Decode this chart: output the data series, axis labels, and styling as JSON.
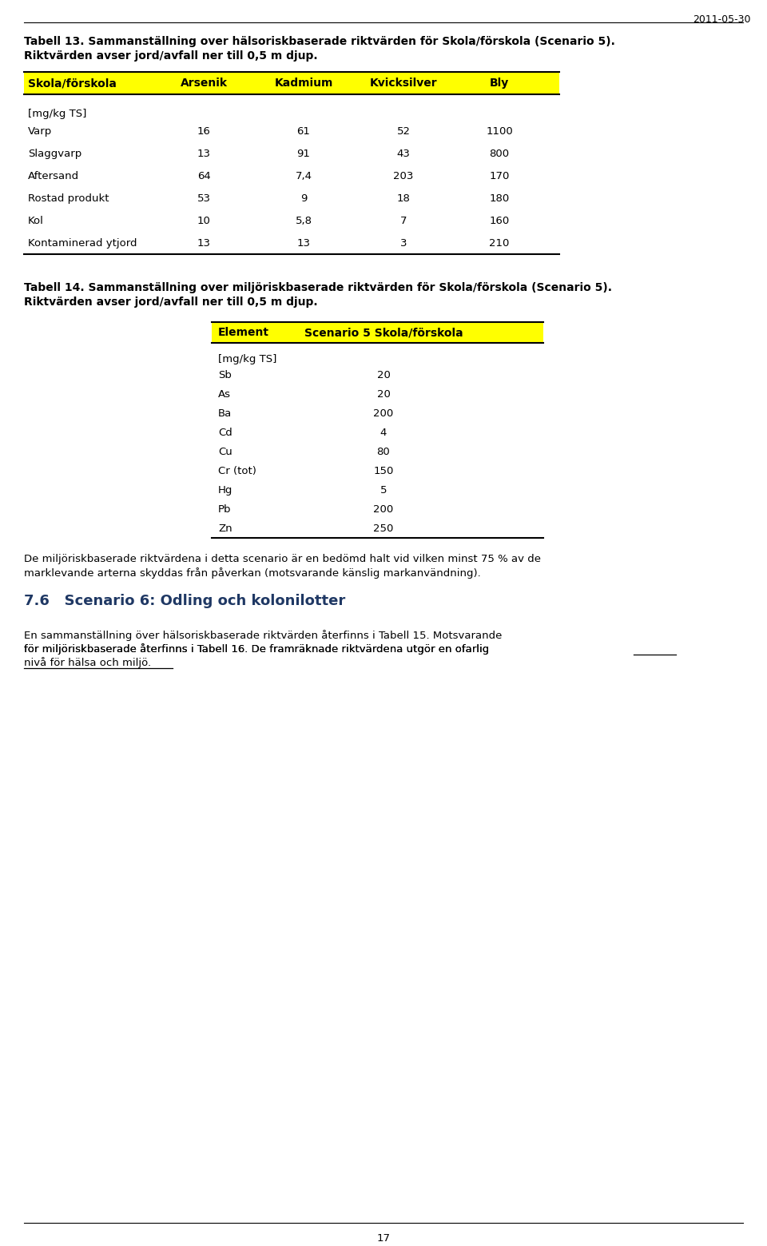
{
  "page_date": "2011-05-30",
  "page_number": "17",
  "background_color": "#ffffff",
  "text_color": "#000000",
  "blue_color": "#1F3864",
  "table13_title_line1": "Tabell 13. Sammanställning over hälsoriskbaserade riktvärden för Skola/förskola (Scenario 5).",
  "table13_title_line2": "Riktvärden avser jord/avfall ner till 0,5 m djup.",
  "table13_header": [
    "Skola/förskola",
    "Arsenik",
    "Kadmium",
    "Kvicksilver",
    "Bly"
  ],
  "table13_unit": "[mg/kg TS]",
  "table13_rows": [
    [
      "Varp",
      "16",
      "61",
      "52",
      "1100"
    ],
    [
      "Slaggvarp",
      "13",
      "91",
      "43",
      "800"
    ],
    [
      "Aftersand",
      "64",
      "7,4",
      "203",
      "170"
    ],
    [
      "Rostad produkt",
      "53",
      "9",
      "18",
      "180"
    ],
    [
      "Kol",
      "10",
      "5,8",
      "7",
      "160"
    ],
    [
      "Kontaminerad ytjord",
      "13",
      "13",
      "3",
      "210"
    ]
  ],
  "table13_header_bg": "#ffff00",
  "table14_title_line1": "Tabell 14. Sammanställning over miljöriskbaserade riktvärden för Skola/förskola (Scenario 5).",
  "table14_title_line2": "Riktvärden avser jord/avfall ner till 0,5 m djup.",
  "table14_header": [
    "Element",
    "Scenario 5 Skola/förskola"
  ],
  "table14_unit": "[mg/kg TS]",
  "table14_rows": [
    [
      "Sb",
      "20"
    ],
    [
      "As",
      "20"
    ],
    [
      "Ba",
      "200"
    ],
    [
      "Cd",
      "4"
    ],
    [
      "Cu",
      "80"
    ],
    [
      "Cr (tot)",
      "150"
    ],
    [
      "Hg",
      "5"
    ],
    [
      "Pb",
      "200"
    ],
    [
      "Zn",
      "250"
    ]
  ],
  "table14_header_bg": "#ffff00",
  "para14_line1": "De miljöriskbaserade riktvärdena i detta scenario är en bedömd halt vid vilken minst 75 % av de",
  "para14_line2": "marklevande arterna skyddas från påverkan (motsvarande känslig markanvändning).",
  "section76_title": "7.6   Scenario 6: Odling och kolonilotter",
  "sec76_para_line1": "En sammanställning över hälsoriskbaserade riktvärden återfinns i Tabell 15. Motsvarande",
  "sec76_para_line2": "för miljöriskbaserade återfinns i Tabell 16. De framräknade riktvärdena utgör en ofarlig",
  "sec76_para_line3": "nivå för hälsa och miljö."
}
